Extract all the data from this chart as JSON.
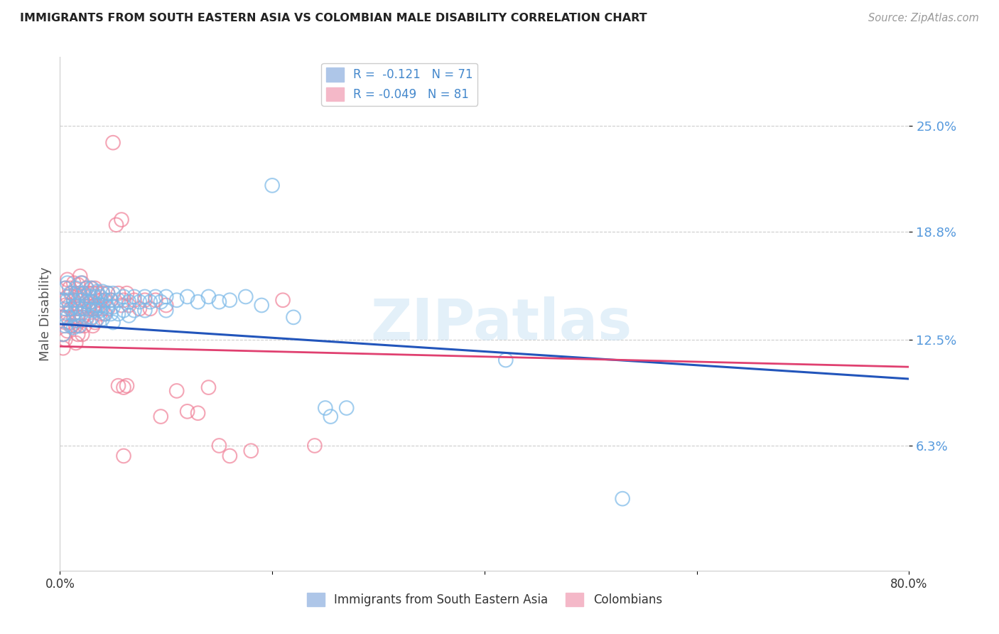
{
  "title": "IMMIGRANTS FROM SOUTH EASTERN ASIA VS COLOMBIAN MALE DISABILITY CORRELATION CHART",
  "source": "Source: ZipAtlas.com",
  "ylabel": "Male Disability",
  "ytick_labels": [
    "25.0%",
    "18.8%",
    "12.5%",
    "6.3%"
  ],
  "ytick_values": [
    0.25,
    0.188,
    0.125,
    0.063
  ],
  "xlim": [
    0.0,
    0.8
  ],
  "ylim": [
    -0.01,
    0.29
  ],
  "color_sea": "#7ab8e8",
  "color_col": "#f08098",
  "color_sea_line": "#2255bb",
  "color_col_line": "#e04070",
  "watermark": "ZIPatlas",
  "sea_line_x": [
    0.0,
    0.8
  ],
  "sea_line_y": [
    0.134,
    0.102
  ],
  "col_line_x": [
    0.0,
    0.8
  ],
  "col_line_y": [
    0.121,
    0.109
  ],
  "sea_scatter": [
    [
      0.003,
      0.148
    ],
    [
      0.003,
      0.138
    ],
    [
      0.003,
      0.128
    ],
    [
      0.005,
      0.155
    ],
    [
      0.005,
      0.143
    ],
    [
      0.005,
      0.133
    ],
    [
      0.007,
      0.158
    ],
    [
      0.007,
      0.148
    ],
    [
      0.007,
      0.138
    ],
    [
      0.01,
      0.152
    ],
    [
      0.01,
      0.143
    ],
    [
      0.01,
      0.133
    ],
    [
      0.013,
      0.148
    ],
    [
      0.013,
      0.14
    ],
    [
      0.013,
      0.132
    ],
    [
      0.015,
      0.155
    ],
    [
      0.015,
      0.145
    ],
    [
      0.015,
      0.136
    ],
    [
      0.018,
      0.152
    ],
    [
      0.018,
      0.143
    ],
    [
      0.018,
      0.133
    ],
    [
      0.02,
      0.158
    ],
    [
      0.02,
      0.148
    ],
    [
      0.02,
      0.14
    ],
    [
      0.022,
      0.152
    ],
    [
      0.022,
      0.143
    ],
    [
      0.025,
      0.155
    ],
    [
      0.025,
      0.147
    ],
    [
      0.025,
      0.138
    ],
    [
      0.028,
      0.15
    ],
    [
      0.028,
      0.142
    ],
    [
      0.03,
      0.155
    ],
    [
      0.03,
      0.147
    ],
    [
      0.03,
      0.138
    ],
    [
      0.033,
      0.15
    ],
    [
      0.033,
      0.142
    ],
    [
      0.035,
      0.153
    ],
    [
      0.035,
      0.145
    ],
    [
      0.035,
      0.137
    ],
    [
      0.038,
      0.15
    ],
    [
      0.038,
      0.142
    ],
    [
      0.04,
      0.153
    ],
    [
      0.04,
      0.145
    ],
    [
      0.04,
      0.137
    ],
    [
      0.043,
      0.148
    ],
    [
      0.043,
      0.14
    ],
    [
      0.045,
      0.152
    ],
    [
      0.045,
      0.144
    ],
    [
      0.048,
      0.148
    ],
    [
      0.048,
      0.14
    ],
    [
      0.05,
      0.152
    ],
    [
      0.05,
      0.144
    ],
    [
      0.05,
      0.135
    ],
    [
      0.055,
      0.148
    ],
    [
      0.055,
      0.14
    ],
    [
      0.06,
      0.15
    ],
    [
      0.06,
      0.142
    ],
    [
      0.065,
      0.147
    ],
    [
      0.065,
      0.139
    ],
    [
      0.07,
      0.15
    ],
    [
      0.07,
      0.142
    ],
    [
      0.075,
      0.147
    ],
    [
      0.08,
      0.15
    ],
    [
      0.08,
      0.142
    ],
    [
      0.085,
      0.147
    ],
    [
      0.09,
      0.15
    ],
    [
      0.095,
      0.147
    ],
    [
      0.1,
      0.15
    ],
    [
      0.1,
      0.142
    ],
    [
      0.11,
      0.148
    ],
    [
      0.12,
      0.15
    ],
    [
      0.13,
      0.147
    ],
    [
      0.14,
      0.15
    ],
    [
      0.15,
      0.147
    ],
    [
      0.16,
      0.148
    ],
    [
      0.175,
      0.15
    ],
    [
      0.19,
      0.145
    ],
    [
      0.2,
      0.215
    ],
    [
      0.22,
      0.138
    ],
    [
      0.25,
      0.085
    ],
    [
      0.255,
      0.08
    ],
    [
      0.27,
      0.085
    ],
    [
      0.42,
      0.113
    ],
    [
      0.53,
      0.032
    ]
  ],
  "col_scatter": [
    [
      0.003,
      0.148
    ],
    [
      0.003,
      0.138
    ],
    [
      0.003,
      0.128
    ],
    [
      0.003,
      0.12
    ],
    [
      0.005,
      0.155
    ],
    [
      0.005,
      0.145
    ],
    [
      0.005,
      0.135
    ],
    [
      0.005,
      0.125
    ],
    [
      0.007,
      0.16
    ],
    [
      0.007,
      0.15
    ],
    [
      0.007,
      0.14
    ],
    [
      0.007,
      0.13
    ],
    [
      0.009,
      0.155
    ],
    [
      0.009,
      0.145
    ],
    [
      0.009,
      0.135
    ],
    [
      0.011,
      0.152
    ],
    [
      0.011,
      0.143
    ],
    [
      0.011,
      0.133
    ],
    [
      0.013,
      0.158
    ],
    [
      0.013,
      0.148
    ],
    [
      0.013,
      0.138
    ],
    [
      0.015,
      0.152
    ],
    [
      0.015,
      0.143
    ],
    [
      0.015,
      0.133
    ],
    [
      0.015,
      0.123
    ],
    [
      0.017,
      0.157
    ],
    [
      0.017,
      0.148
    ],
    [
      0.017,
      0.138
    ],
    [
      0.017,
      0.128
    ],
    [
      0.019,
      0.162
    ],
    [
      0.019,
      0.152
    ],
    [
      0.019,
      0.143
    ],
    [
      0.019,
      0.133
    ],
    [
      0.021,
      0.158
    ],
    [
      0.021,
      0.148
    ],
    [
      0.021,
      0.138
    ],
    [
      0.021,
      0.128
    ],
    [
      0.023,
      0.152
    ],
    [
      0.023,
      0.143
    ],
    [
      0.023,
      0.133
    ],
    [
      0.025,
      0.155
    ],
    [
      0.025,
      0.147
    ],
    [
      0.025,
      0.137
    ],
    [
      0.027,
      0.152
    ],
    [
      0.027,
      0.143
    ],
    [
      0.029,
      0.155
    ],
    [
      0.029,
      0.147
    ],
    [
      0.029,
      0.137
    ],
    [
      0.031,
      0.152
    ],
    [
      0.031,
      0.143
    ],
    [
      0.031,
      0.133
    ],
    [
      0.033,
      0.155
    ],
    [
      0.033,
      0.145
    ],
    [
      0.033,
      0.135
    ],
    [
      0.035,
      0.152
    ],
    [
      0.035,
      0.143
    ],
    [
      0.038,
      0.148
    ],
    [
      0.038,
      0.14
    ],
    [
      0.04,
      0.152
    ],
    [
      0.04,
      0.143
    ],
    [
      0.042,
      0.148
    ],
    [
      0.042,
      0.14
    ],
    [
      0.045,
      0.152
    ],
    [
      0.045,
      0.143
    ],
    [
      0.048,
      0.148
    ],
    [
      0.05,
      0.24
    ],
    [
      0.053,
      0.192
    ],
    [
      0.055,
      0.152
    ],
    [
      0.055,
      0.098
    ],
    [
      0.058,
      0.195
    ],
    [
      0.058,
      0.145
    ],
    [
      0.06,
      0.148
    ],
    [
      0.06,
      0.097
    ],
    [
      0.063,
      0.152
    ],
    [
      0.063,
      0.098
    ],
    [
      0.065,
      0.145
    ],
    [
      0.07,
      0.148
    ],
    [
      0.075,
      0.143
    ],
    [
      0.08,
      0.148
    ],
    [
      0.085,
      0.143
    ],
    [
      0.09,
      0.148
    ],
    [
      0.095,
      0.08
    ],
    [
      0.1,
      0.145
    ],
    [
      0.11,
      0.095
    ],
    [
      0.12,
      0.083
    ],
    [
      0.13,
      0.082
    ],
    [
      0.14,
      0.097
    ],
    [
      0.15,
      0.063
    ],
    [
      0.16,
      0.057
    ],
    [
      0.18,
      0.06
    ],
    [
      0.21,
      0.148
    ],
    [
      0.24,
      0.063
    ],
    [
      0.06,
      0.057
    ]
  ]
}
